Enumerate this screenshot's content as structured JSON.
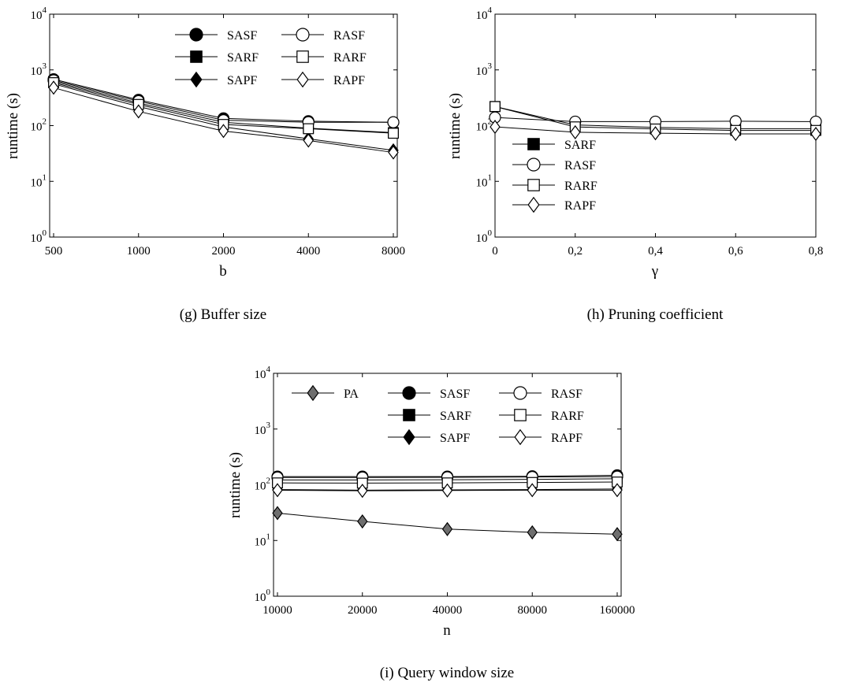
{
  "chart_data": [
    {
      "type": "line",
      "caption": "(g) Buffer size",
      "xlabel": "b",
      "ylabel": "runtime (s)",
      "yscale": "log",
      "ylim": [
        1,
        10000
      ],
      "categories": [
        "500",
        "1000",
        "2000",
        "4000",
        "8000"
      ],
      "ytick_labels": [
        "10^0",
        "10^1",
        "10^2",
        "10^3",
        "10^4"
      ],
      "legend_layout": "two columns, top",
      "series": [
        {
          "name": "SASF",
          "marker": "circle-filled",
          "values": [
            680,
            290,
            135,
            120,
            115
          ]
        },
        {
          "name": "SARF",
          "marker": "square-filled",
          "values": [
            620,
            255,
            115,
            90,
            75
          ]
        },
        {
          "name": "SAPF",
          "marker": "diamond-filled",
          "values": [
            560,
            220,
            95,
            58,
            36
          ]
        },
        {
          "name": "RASF",
          "marker": "circle-open",
          "values": [
            650,
            275,
            125,
            115,
            115
          ]
        },
        {
          "name": "RARF",
          "marker": "square-open",
          "values": [
            590,
            240,
            105,
            88,
            73
          ]
        },
        {
          "name": "RAPF",
          "marker": "diamond-open",
          "values": [
            480,
            180,
            80,
            54,
            33
          ]
        }
      ]
    },
    {
      "type": "line",
      "caption": "(h) Pruning coefficient",
      "xlabel": "γ",
      "ylabel": "runtime (s)",
      "yscale": "log",
      "ylim": [
        1,
        10000
      ],
      "categories": [
        "0",
        "0,2",
        "0,4",
        "0,6",
        "0,8"
      ],
      "ytick_labels": [
        "10^0",
        "10^1",
        "10^2",
        "10^3",
        "10^4"
      ],
      "legend_layout": "one column, bottom-left",
      "series": [
        {
          "name": "SARF",
          "marker": "square-filled",
          "values": [
            220,
            103,
            93,
            88,
            88
          ]
        },
        {
          "name": "RASF",
          "marker": "circle-open",
          "values": [
            140,
            118,
            118,
            120,
            118
          ]
        },
        {
          "name": "RARF",
          "marker": "square-open",
          "values": [
            220,
            95,
            87,
            82,
            82
          ]
        },
        {
          "name": "RAPF",
          "marker": "diamond-open",
          "values": [
            95,
            76,
            73,
            71,
            71
          ]
        }
      ]
    },
    {
      "type": "line",
      "caption": "(i) Query window size",
      "xlabel": "n",
      "ylabel": "runtime (s)",
      "yscale": "log",
      "ylim": [
        1,
        10000
      ],
      "categories": [
        "10000",
        "20000",
        "40000",
        "80000",
        "160000"
      ],
      "ytick_labels": [
        "10^0",
        "10^1",
        "10^2",
        "10^3",
        "10^4"
      ],
      "legend_layout": "three columns, top",
      "series": [
        {
          "name": "PA",
          "marker": "diamond-gray",
          "values": [
            31,
            22,
            16,
            14,
            13
          ]
        },
        {
          "name": "SASF",
          "marker": "circle-filled",
          "values": [
            140,
            140,
            140,
            142,
            148
          ]
        },
        {
          "name": "SARF",
          "marker": "square-filled",
          "values": [
            122,
            122,
            123,
            125,
            128
          ]
        },
        {
          "name": "SAPF",
          "marker": "diamond-filled",
          "values": [
            82,
            80,
            81,
            82,
            84
          ]
        },
        {
          "name": "RASF",
          "marker": "circle-open",
          "values": [
            135,
            135,
            136,
            138,
            140
          ]
        },
        {
          "name": "RARF",
          "marker": "square-open",
          "values": [
            108,
            107,
            108,
            110,
            112
          ]
        },
        {
          "name": "RAPF",
          "marker": "diamond-open",
          "values": [
            80,
            78,
            79,
            80,
            80
          ]
        }
      ]
    }
  ]
}
